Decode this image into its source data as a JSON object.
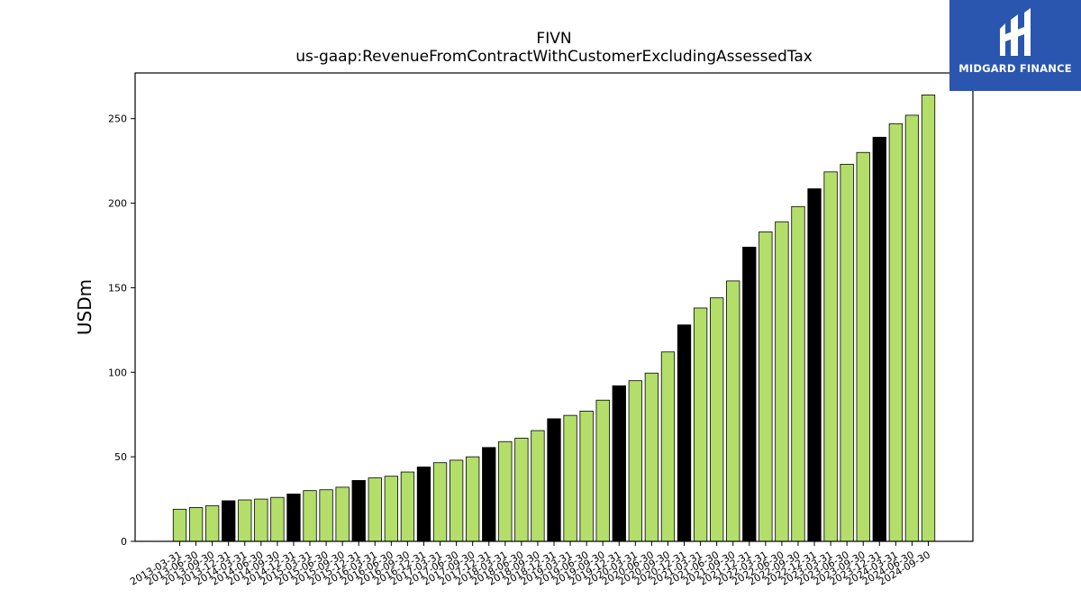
{
  "header": {
    "title_line1": "FIVN",
    "title_line2": "us-gaap:RevenueFromContractWithCustomerExcludingAssessedTax"
  },
  "logo": {
    "text": "MIDGARD FINANCE",
    "color": "#2a56b0"
  },
  "chart_data": {
    "type": "bar",
    "title": "FIVN\nus-gaap:RevenueFromContractWithCustomerExcludingAssessedTax",
    "ylabel": "USDm",
    "xlabel": "",
    "ylim": [
      0,
      277
    ],
    "yticks": [
      0,
      50,
      100,
      150,
      200,
      250
    ],
    "grid": false,
    "colors": {
      "quarter": "#b3de69",
      "year_end": "#000000",
      "edge": "#000000"
    },
    "categories": [
      "2013-03-31",
      "2013-06-30",
      "2013-09-30",
      "2013-12-31",
      "2014-03-31",
      "2014-06-30",
      "2014-09-30",
      "2014-12-31",
      "2015-03-31",
      "2015-06-30",
      "2015-09-30",
      "2015-12-31",
      "2016-03-31",
      "2016-06-30",
      "2016-09-30",
      "2016-12-31",
      "2017-03-31",
      "2017-06-30",
      "2017-09-30",
      "2017-12-31",
      "2018-03-31",
      "2018-06-30",
      "2018-09-30",
      "2018-12-31",
      "2019-03-31",
      "2019-06-30",
      "2019-09-30",
      "2019-12-31",
      "2020-03-31",
      "2020-06-30",
      "2020-09-30",
      "2020-12-31",
      "2021-03-31",
      "2021-06-30",
      "2021-09-30",
      "2021-12-31",
      "2022-03-31",
      "2022-06-30",
      "2022-09-30",
      "2022-12-31",
      "2023-03-31",
      "2023-06-30",
      "2023-09-30",
      "2023-12-31",
      "2024-03-31",
      "2024-06-30",
      "2024-09-30"
    ],
    "values": [
      19,
      20,
      21,
      24,
      24.5,
      25,
      26,
      28,
      30,
      30.5,
      32,
      36,
      37.5,
      38.5,
      41,
      44,
      46.5,
      48,
      50,
      55.5,
      59,
      61,
      65.5,
      72.5,
      74.5,
      77,
      83.5,
      92,
      95,
      99.5,
      112,
      128,
      138,
      144,
      154,
      174,
      183,
      189,
      198,
      208.5,
      218.5,
      223,
      230,
      239,
      247,
      252,
      264
    ],
    "highlight": [
      false,
      false,
      false,
      true,
      false,
      false,
      false,
      true,
      false,
      false,
      false,
      true,
      false,
      false,
      false,
      true,
      false,
      false,
      false,
      true,
      false,
      false,
      false,
      true,
      false,
      false,
      false,
      true,
      false,
      false,
      false,
      true,
      false,
      false,
      false,
      true,
      false,
      false,
      false,
      true,
      false,
      false,
      false,
      true,
      false,
      false,
      false
    ]
  }
}
